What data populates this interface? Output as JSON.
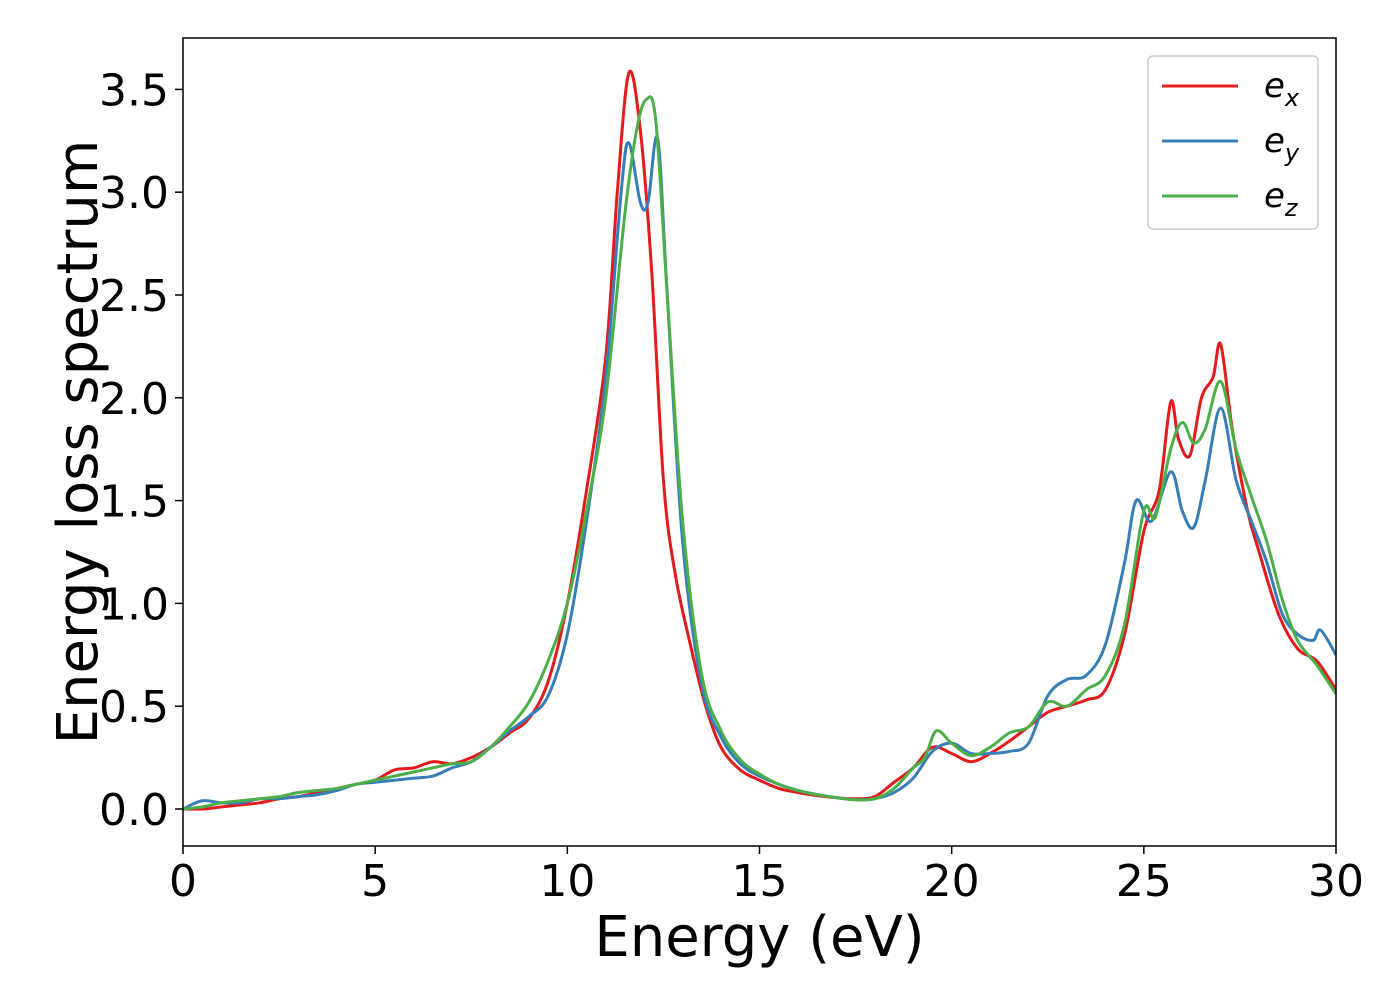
{
  "chart_data": {
    "type": "line",
    "title": "",
    "xlabel": "Energy (eV)",
    "ylabel": "Energy loss spectrum",
    "xlim": [
      0,
      30
    ],
    "ylim": [
      -0.18,
      3.75
    ],
    "xticks": [
      "0",
      "5",
      "10",
      "15",
      "20",
      "25",
      "30"
    ],
    "yticks": [
      "0.0",
      "0.5",
      "1.0",
      "1.5",
      "2.0",
      "2.5",
      "3.0",
      "3.5"
    ],
    "grid": false,
    "legend_position": "top-right",
    "series": [
      {
        "name_base": "e",
        "name_sub": "x",
        "color": "#e41a1c",
        "points": [
          [
            0,
            0
          ],
          [
            0.5,
            0
          ],
          [
            1,
            0.01
          ],
          [
            1.5,
            0.02
          ],
          [
            2,
            0.03
          ],
          [
            2.5,
            0.05
          ],
          [
            3,
            0.06
          ],
          [
            3.5,
            0.08
          ],
          [
            4,
            0.1
          ],
          [
            4.5,
            0.12
          ],
          [
            5,
            0.14
          ],
          [
            5.5,
            0.19
          ],
          [
            6,
            0.2
          ],
          [
            6.5,
            0.23
          ],
          [
            7,
            0.22
          ],
          [
            7.5,
            0.25
          ],
          [
            8,
            0.3
          ],
          [
            8.5,
            0.37
          ],
          [
            9,
            0.44
          ],
          [
            9.5,
            0.62
          ],
          [
            10,
            1.0
          ],
          [
            10.5,
            1.55
          ],
          [
            11,
            2.2
          ],
          [
            11.3,
            3.0
          ],
          [
            11.6,
            3.58
          ],
          [
            11.9,
            3.3
          ],
          [
            12.2,
            2.6
          ],
          [
            12.5,
            1.6
          ],
          [
            12.8,
            1.15
          ],
          [
            13.2,
            0.8
          ],
          [
            13.6,
            0.5
          ],
          [
            14,
            0.3
          ],
          [
            14.5,
            0.19
          ],
          [
            15,
            0.14
          ],
          [
            15.5,
            0.1
          ],
          [
            16,
            0.08
          ],
          [
            16.5,
            0.065
          ],
          [
            17,
            0.055
          ],
          [
            17.5,
            0.05
          ],
          [
            18,
            0.06
          ],
          [
            18.5,
            0.13
          ],
          [
            19,
            0.2
          ],
          [
            19.5,
            0.3
          ],
          [
            20,
            0.27
          ],
          [
            20.5,
            0.23
          ],
          [
            21,
            0.27
          ],
          [
            21.5,
            0.33
          ],
          [
            22,
            0.4
          ],
          [
            22.5,
            0.47
          ],
          [
            23,
            0.5
          ],
          [
            23.5,
            0.53
          ],
          [
            24,
            0.58
          ],
          [
            24.5,
            0.85
          ],
          [
            25,
            1.35
          ],
          [
            25.4,
            1.55
          ],
          [
            25.7,
            1.98
          ],
          [
            25.9,
            1.8
          ],
          [
            26.2,
            1.72
          ],
          [
            26.5,
            2.0
          ],
          [
            26.8,
            2.1
          ],
          [
            27,
            2.26
          ],
          [
            27.3,
            1.85
          ],
          [
            27.7,
            1.45
          ],
          [
            28,
            1.25
          ],
          [
            28.5,
            0.95
          ],
          [
            29,
            0.78
          ],
          [
            29.5,
            0.72
          ],
          [
            30,
            0.58
          ]
        ]
      },
      {
        "name_base": "e",
        "name_sub": "y",
        "color": "#377eb8",
        "points": [
          [
            0,
            0
          ],
          [
            0.5,
            0.04
          ],
          [
            1,
            0.03
          ],
          [
            1.5,
            0.03
          ],
          [
            2,
            0.05
          ],
          [
            2.5,
            0.05
          ],
          [
            3,
            0.06
          ],
          [
            3.5,
            0.07
          ],
          [
            4,
            0.09
          ],
          [
            4.5,
            0.12
          ],
          [
            5,
            0.13
          ],
          [
            5.5,
            0.14
          ],
          [
            6,
            0.15
          ],
          [
            6.5,
            0.16
          ],
          [
            7,
            0.2
          ],
          [
            7.5,
            0.23
          ],
          [
            8,
            0.3
          ],
          [
            8.5,
            0.38
          ],
          [
            9,
            0.45
          ],
          [
            9.5,
            0.55
          ],
          [
            10,
            0.85
          ],
          [
            10.5,
            1.4
          ],
          [
            11,
            2.1
          ],
          [
            11.4,
            3.0
          ],
          [
            11.6,
            3.24
          ],
          [
            11.9,
            2.95
          ],
          [
            12.1,
            2.95
          ],
          [
            12.35,
            3.26
          ],
          [
            12.6,
            2.5
          ],
          [
            13,
            1.3
          ],
          [
            13.5,
            0.6
          ],
          [
            14,
            0.35
          ],
          [
            14.5,
            0.22
          ],
          [
            15,
            0.16
          ],
          [
            15.5,
            0.12
          ],
          [
            16,
            0.09
          ],
          [
            16.5,
            0.07
          ],
          [
            17,
            0.055
          ],
          [
            17.5,
            0.045
          ],
          [
            18,
            0.05
          ],
          [
            18.5,
            0.08
          ],
          [
            19,
            0.15
          ],
          [
            19.5,
            0.28
          ],
          [
            20,
            0.32
          ],
          [
            20.5,
            0.27
          ],
          [
            21,
            0.27
          ],
          [
            21.5,
            0.28
          ],
          [
            22,
            0.32
          ],
          [
            22.5,
            0.55
          ],
          [
            23,
            0.63
          ],
          [
            23.5,
            0.65
          ],
          [
            24,
            0.8
          ],
          [
            24.5,
            1.2
          ],
          [
            24.8,
            1.5
          ],
          [
            25.2,
            1.4
          ],
          [
            25.7,
            1.64
          ],
          [
            26,
            1.45
          ],
          [
            26.3,
            1.37
          ],
          [
            26.6,
            1.6
          ],
          [
            27,
            1.95
          ],
          [
            27.4,
            1.6
          ],
          [
            27.8,
            1.4
          ],
          [
            28.2,
            1.2
          ],
          [
            28.6,
            0.95
          ],
          [
            29,
            0.85
          ],
          [
            29.4,
            0.82
          ],
          [
            29.6,
            0.87
          ],
          [
            30,
            0.75
          ]
        ]
      },
      {
        "name_base": "e",
        "name_sub": "z",
        "color": "#4daf4a",
        "points": [
          [
            0,
            0
          ],
          [
            0.5,
            0.01
          ],
          [
            1,
            0.03
          ],
          [
            1.5,
            0.04
          ],
          [
            2,
            0.05
          ],
          [
            2.5,
            0.06
          ],
          [
            3,
            0.08
          ],
          [
            3.5,
            0.09
          ],
          [
            4,
            0.1
          ],
          [
            4.5,
            0.12
          ],
          [
            5,
            0.14
          ],
          [
            5.5,
            0.16
          ],
          [
            6,
            0.18
          ],
          [
            6.5,
            0.2
          ],
          [
            7,
            0.22
          ],
          [
            7.5,
            0.23
          ],
          [
            8,
            0.3
          ],
          [
            8.5,
            0.4
          ],
          [
            9,
            0.52
          ],
          [
            9.5,
            0.72
          ],
          [
            10,
            1.0
          ],
          [
            10.5,
            1.45
          ],
          [
            11,
            2.0
          ],
          [
            11.5,
            2.9
          ],
          [
            11.8,
            3.3
          ],
          [
            12.05,
            3.45
          ],
          [
            12.3,
            3.35
          ],
          [
            12.6,
            2.5
          ],
          [
            13,
            1.4
          ],
          [
            13.5,
            0.65
          ],
          [
            14,
            0.38
          ],
          [
            14.5,
            0.24
          ],
          [
            15,
            0.17
          ],
          [
            15.5,
            0.12
          ],
          [
            16,
            0.09
          ],
          [
            16.5,
            0.07
          ],
          [
            17,
            0.055
          ],
          [
            17.5,
            0.045
          ],
          [
            18,
            0.05
          ],
          [
            18.5,
            0.1
          ],
          [
            19,
            0.2
          ],
          [
            19.3,
            0.25
          ],
          [
            19.6,
            0.38
          ],
          [
            20,
            0.32
          ],
          [
            20.5,
            0.26
          ],
          [
            21,
            0.3
          ],
          [
            21.5,
            0.37
          ],
          [
            22,
            0.4
          ],
          [
            22.5,
            0.52
          ],
          [
            23,
            0.5
          ],
          [
            23.5,
            0.58
          ],
          [
            24,
            0.65
          ],
          [
            24.5,
            0.9
          ],
          [
            25,
            1.45
          ],
          [
            25.3,
            1.42
          ],
          [
            25.7,
            1.75
          ],
          [
            26,
            1.88
          ],
          [
            26.3,
            1.78
          ],
          [
            26.6,
            1.85
          ],
          [
            27,
            2.08
          ],
          [
            27.4,
            1.75
          ],
          [
            27.8,
            1.52
          ],
          [
            28.2,
            1.3
          ],
          [
            28.6,
            1.02
          ],
          [
            29,
            0.82
          ],
          [
            29.5,
            0.7
          ],
          [
            30,
            0.56
          ]
        ]
      }
    ]
  }
}
